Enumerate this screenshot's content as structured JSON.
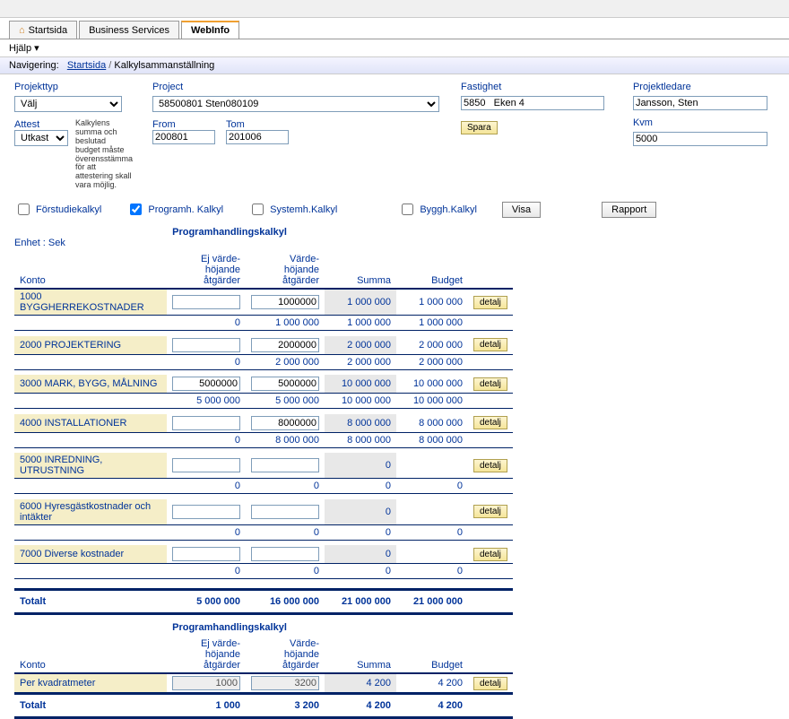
{
  "tabs": {
    "items": [
      "Startsida",
      "Business Services",
      "WebInfo"
    ],
    "active": 2
  },
  "help": "Hjälp",
  "breadcrumb": {
    "label": "Navigering:",
    "links": [
      "Startsida"
    ],
    "current": "Kalkylsammanställning"
  },
  "form": {
    "projekttyp_label": "Projekttyp",
    "projekttyp_value": "Välj",
    "attest_label": "Attest",
    "attest_value": "Utkast",
    "project_label": "Project",
    "project_value": "58500801 Sten080109",
    "from_label": "From",
    "from_value": "200801",
    "tom_label": "Tom",
    "tom_value": "201006",
    "fastighet_label": "Fastighet",
    "fastighet_value": "5850   Eken 4",
    "projektledare_label": "Projektledare",
    "projektledare_value": "Jansson, Sten",
    "kvm_label": "Kvm",
    "kvm_value": "5000",
    "spara": "Spara",
    "visa": "Visa",
    "rapport": "Rapport",
    "helptext": "Kalkylens summa och beslutad budget måste överensstämma för att attestering skall vara möjlig."
  },
  "checks": {
    "forstudie": "Förstudiekalkyl",
    "programh": "Programh. Kalkyl",
    "systemh": "Systemh.Kalkyl",
    "byggh": "Byggh.Kalkyl"
  },
  "section_title": "Programhandlingskalkyl",
  "unit": "Enhet : Sek",
  "headers": {
    "konto": "Konto",
    "ej": "Ej värde-\nhöjande\nåtgärder",
    "varde": "Värde-\nhöjande\nåtgärder",
    "summa": "Summa",
    "budget": "Budget"
  },
  "detalj": "detalj",
  "rows": [
    {
      "acct": "1000 BYGGHERREKOSTNADER",
      "ej": "",
      "varde": "1000000",
      "sum": "1 000 000",
      "bud": "1 000 000",
      "sub_ej": "0",
      "sub_varde": "1 000 000",
      "sub_sum": "1 000 000",
      "sub_bud": "1 000 000"
    },
    {
      "acct": "2000 PROJEKTERING",
      "ej": "",
      "varde": "2000000",
      "sum": "2 000 000",
      "bud": "2 000 000",
      "sub_ej": "0",
      "sub_varde": "2 000 000",
      "sub_sum": "2 000 000",
      "sub_bud": "2 000 000"
    },
    {
      "acct": "3000 MARK, BYGG, MÅLNING",
      "ej": "5000000",
      "varde": "5000000",
      "sum": "10 000 000",
      "bud": "10 000 000",
      "sub_ej": "5 000 000",
      "sub_varde": "5 000 000",
      "sub_sum": "10 000 000",
      "sub_bud": "10 000 000"
    },
    {
      "acct": "4000 INSTALLATIONER",
      "ej": "",
      "varde": "8000000",
      "sum": "8 000 000",
      "bud": "8 000 000",
      "sub_ej": "0",
      "sub_varde": "8 000 000",
      "sub_sum": "8 000 000",
      "sub_bud": "8 000 000"
    },
    {
      "acct": "5000 INREDNING, UTRUSTNING",
      "ej": "",
      "varde": "",
      "sum": "0",
      "bud": "",
      "sub_ej": "0",
      "sub_varde": "0",
      "sub_sum": "0",
      "sub_bud": "0"
    },
    {
      "acct": "6000 Hyresgästkostnader och intäkter",
      "ej": "",
      "varde": "",
      "sum": "0",
      "bud": "",
      "sub_ej": "0",
      "sub_varde": "0",
      "sub_sum": "0",
      "sub_bud": "0"
    },
    {
      "acct": "7000 Diverse kostnader",
      "ej": "",
      "varde": "",
      "sum": "0",
      "bud": "",
      "sub_ej": "0",
      "sub_varde": "0",
      "sub_sum": "0",
      "sub_bud": "0"
    }
  ],
  "totals": {
    "label": "Totalt",
    "ej": "5 000 000",
    "varde": "16 000 000",
    "sum": "21 000 000",
    "bud": "21 000 000"
  },
  "perkvm": {
    "acct": "Per kvadratmeter",
    "ej": "1000",
    "varde": "3200",
    "sum": "4 200",
    "bud": "4 200",
    "tot_label": "Totalt",
    "tot_ej": "1 000",
    "tot_varde": "3 200",
    "tot_sum": "4 200",
    "tot_bud": "4 200"
  }
}
